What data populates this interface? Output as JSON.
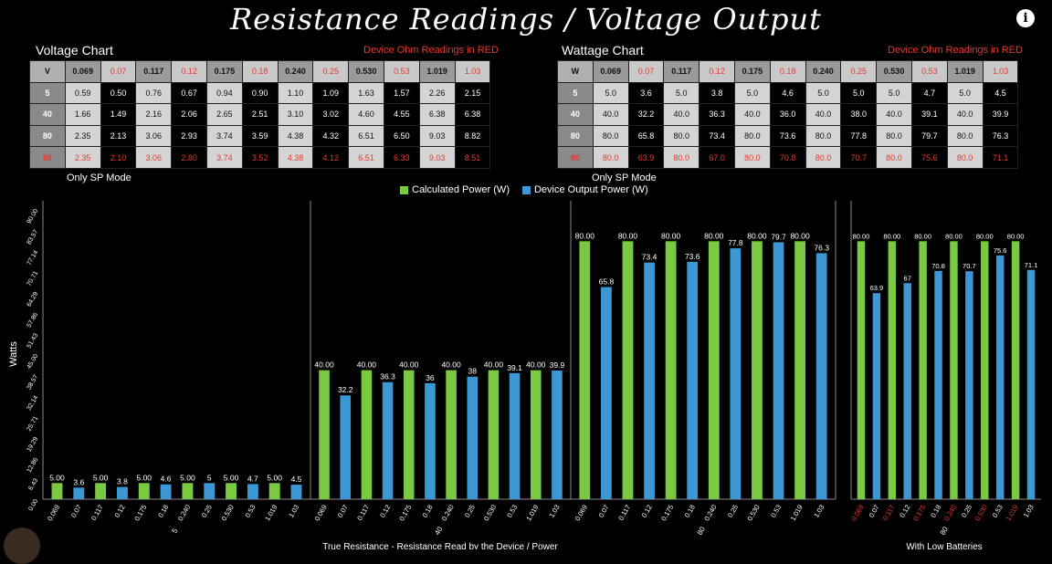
{
  "title": "Resistance Readings / Voltage Output",
  "voltage_table": {
    "title": "Voltage Chart",
    "note": "Device Ohm Readings in RED",
    "mode": "Only SP Mode",
    "header": [
      "V",
      "0.069",
      "0.07",
      "0.117",
      "0.12",
      "0.175",
      "0.18",
      "0.240",
      "0.25",
      "0.530",
      "0.53",
      "1.019",
      "1.03"
    ],
    "rows": [
      [
        "5",
        "0.59",
        "0.50",
        "0.76",
        "0.67",
        "0.94",
        "0.90",
        "1.10",
        "1.09",
        "1.63",
        "1.57",
        "2.26",
        "2.15"
      ],
      [
        "40",
        "1.66",
        "1.49",
        "2.16",
        "2.06",
        "2.65",
        "2.51",
        "3.10",
        "3.02",
        "4.60",
        "4.55",
        "6.38",
        "6.38"
      ],
      [
        "80",
        "2.35",
        "2.13",
        "3.06",
        "2.93",
        "3.74",
        "3.59",
        "4.38",
        "4.32",
        "6.51",
        "6.50",
        "9.03",
        "8.82"
      ],
      [
        "80",
        "2.35",
        "2.10",
        "3.06",
        "2.80",
        "3.74",
        "3.52",
        "4.38",
        "4.12",
        "6.51",
        "6.33",
        "9.03",
        "8.51"
      ]
    ]
  },
  "wattage_table": {
    "title": "Wattage Chart",
    "note": "Device Ohm Readings in RED",
    "mode": "Only SP Mode",
    "header": [
      "W",
      "0.069",
      "0.07",
      "0.117",
      "0.12",
      "0.175",
      "0.18",
      "0.240",
      "0.25",
      "0.530",
      "0.53",
      "1.019",
      "1.03"
    ],
    "rows": [
      [
        "5",
        "5.0",
        "3.6",
        "5.0",
        "3.8",
        "5.0",
        "4.6",
        "5.0",
        "5.0",
        "5.0",
        "4.7",
        "5.0",
        "4.5"
      ],
      [
        "40",
        "40.0",
        "32.2",
        "40.0",
        "36.3",
        "40.0",
        "36.0",
        "40.0",
        "38.0",
        "40.0",
        "39.1",
        "40.0",
        "39.9"
      ],
      [
        "80",
        "80.0",
        "65.8",
        "80.0",
        "73.4",
        "80.0",
        "73.6",
        "80.0",
        "77.8",
        "80.0",
        "79.7",
        "80.0",
        "76.3"
      ],
      [
        "80",
        "80.0",
        "63.9",
        "80.0",
        "67.0",
        "80.0",
        "70.8",
        "80.0",
        "70.7",
        "80.0",
        "75.6",
        "80.0",
        "71.1"
      ]
    ]
  },
  "colors": {
    "green": "#7ac943",
    "blue": "#3d97d4",
    "red": "#e53a2e"
  },
  "chart_data": {
    "type": "bar",
    "ylabel": "Watts",
    "xlabel": "True Resistance - Resistance Read by the Device / Power",
    "xlabel_right": "With Low Batteries",
    "ylim": [
      0,
      90
    ],
    "yticks": [
      "0.00",
      "6.43",
      "12.86",
      "19.29",
      "25.71",
      "32.14",
      "38.57",
      "45.00",
      "51.43",
      "57.86",
      "64.29",
      "70.71",
      "77.14",
      "83.57",
      "90.00"
    ],
    "legend": [
      "Calculated Power (W)",
      "Device Output Power (W)"
    ],
    "groups": [
      {
        "name": "5",
        "categories": [
          "0.069",
          "0.07",
          "0.117",
          "0.12",
          "0.175",
          "0.18",
          "0.240",
          "0.25",
          "0.530",
          "0.53",
          "1.019",
          "1.03"
        ],
        "values": [
          5.0,
          3.6,
          5.0,
          3.8,
          5.0,
          4.6,
          5.0,
          5,
          5.0,
          4.7,
          5.0,
          4.5
        ],
        "labels": [
          "5.00",
          "3.6",
          "5.00",
          "3.8",
          "5.00",
          "4.6",
          "5.00",
          "5",
          "5.00",
          "4.7",
          "5.00",
          "4.5"
        ]
      },
      {
        "name": "40",
        "categories": [
          "0.069",
          "0.07",
          "0.117",
          "0.12",
          "0.175",
          "0.18",
          "0.240",
          "0.25",
          "0.530",
          "0.53",
          "1.019",
          "1.03"
        ],
        "values": [
          40.0,
          32.2,
          40.0,
          36.3,
          40.0,
          36,
          40.0,
          38,
          40.0,
          39.1,
          40.0,
          39.9
        ],
        "labels": [
          "40.00",
          "32.2",
          "40.00",
          "36.3",
          "40.00",
          "36",
          "40.00",
          "38",
          "40.00",
          "39.1",
          "40.00",
          "39.9"
        ]
      },
      {
        "name": "80",
        "categories": [
          "0.069",
          "0.07",
          "0.117",
          "0.12",
          "0.175",
          "0.18",
          "0.240",
          "0.25",
          "0.530",
          "0.53",
          "1.019",
          "1.03"
        ],
        "values": [
          80.0,
          65.8,
          80.0,
          73.4,
          80.0,
          73.6,
          80.0,
          77.8,
          80.0,
          79.7,
          80.0,
          76.3
        ],
        "labels": [
          "80.00",
          "65.8",
          "80.00",
          "73.4",
          "80.00",
          "73.6",
          "80.00",
          "77.8",
          "80.00",
          "79.7",
          "80.00",
          "76.3"
        ]
      },
      {
        "name": "80",
        "categories": [
          "0.069",
          "0.07",
          "0.117",
          "0.12",
          "0.175",
          "0.18",
          "0.240",
          "0.25",
          "0.530",
          "0.53",
          "1.019",
          "1.03"
        ],
        "values": [
          80.0,
          63.9,
          80.0,
          67,
          80.0,
          70.8,
          80.0,
          70.7,
          80.0,
          75.6,
          80.0,
          71.1
        ],
        "labels": [
          "80.00",
          "63.9",
          "80.00",
          "67",
          "80.00",
          "70.8",
          "80.00",
          "70.7",
          "80.00",
          "75.6",
          "80.00",
          "71.1"
        ]
      }
    ]
  }
}
